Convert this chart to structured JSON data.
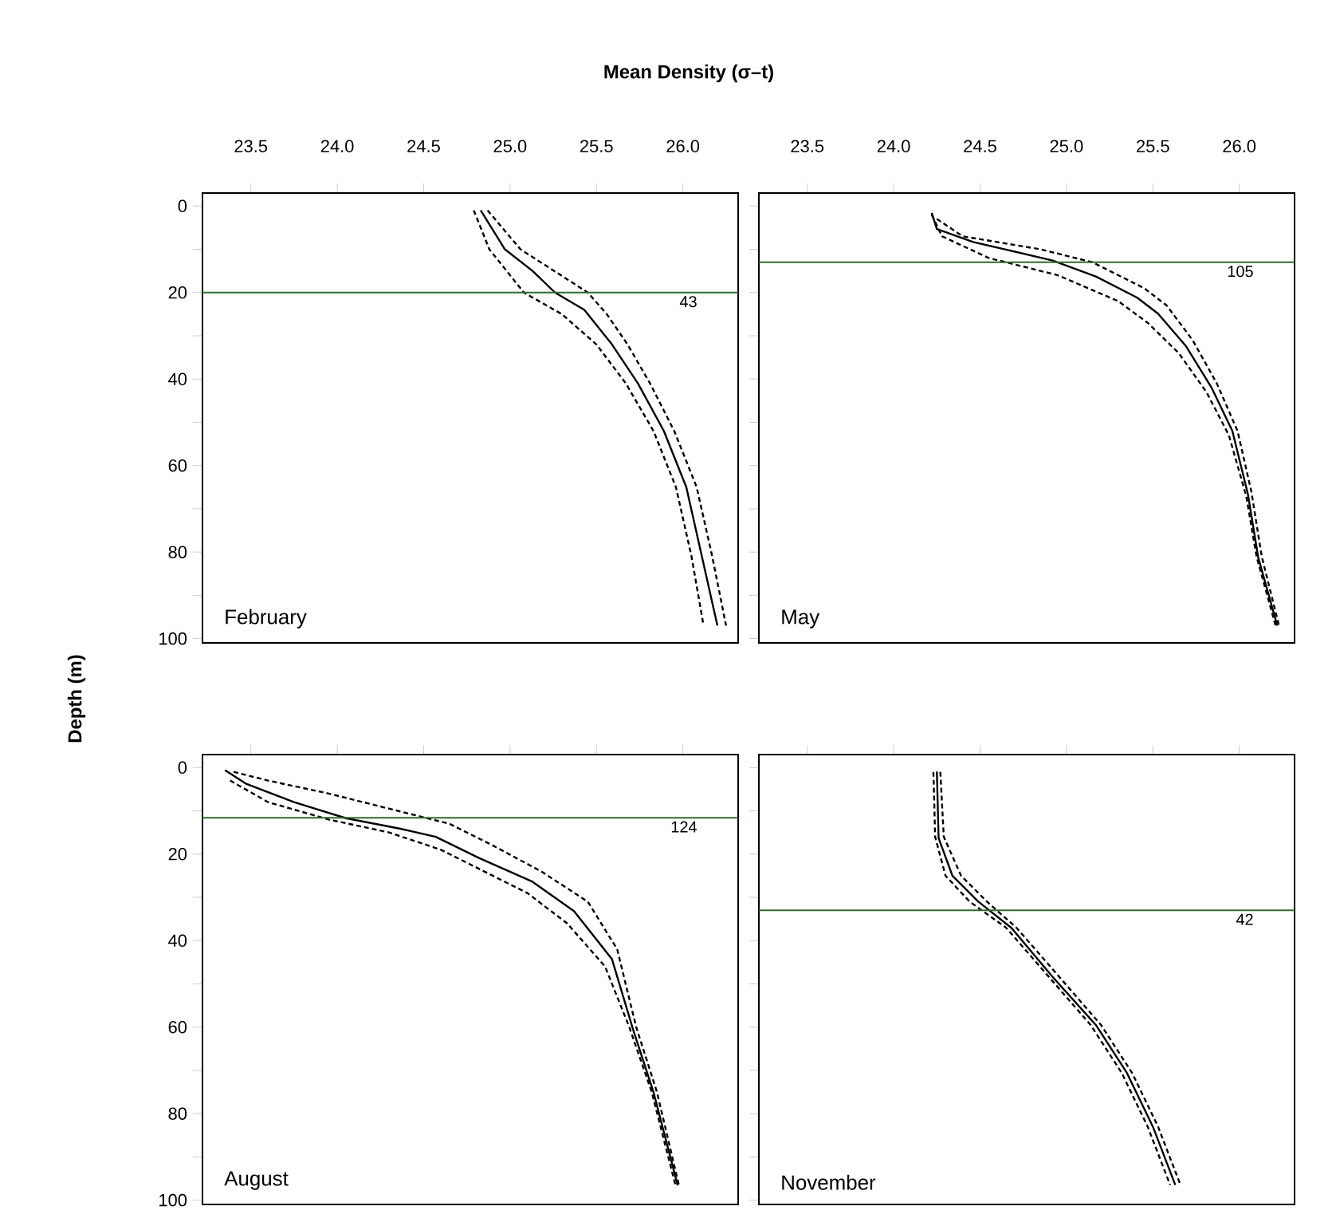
{
  "chart_data": [
    {
      "type": "line",
      "xlabel": "Mean Density  (σ–t)",
      "ylabel": "Depth (m)",
      "annotations": [
        "February",
        "43"
      ],
      "xlim": [
        23.22,
        26.32
      ],
      "ylim": [
        101,
        -3
      ],
      "xticks": [
        23.5,
        {
          "value": 24,
          "label": "24.0"
        },
        24.5,
        {
          "value": 25,
          "label": "25.0"
        },
        25.5,
        {
          "value": 26,
          "label": "26.0"
        }
      ],
      "yticks": [
        0,
        {
          "value": 10,
          "label": null
        },
        20,
        {
          "value": 30,
          "label": null
        },
        40,
        {
          "value": 50,
          "label": null
        },
        60,
        {
          "value": 70,
          "label": null
        },
        80,
        {
          "value": 90,
          "label": null
        },
        100
      ],
      "ref_lines": [
        {
          "axis": "y",
          "value": 20,
          "color": "#2e6b2e"
        }
      ],
      "series": [
        {
          "color": "#000000",
          "line_style": "solid",
          "x": [
            24.83,
            24.97,
            25.13,
            25.26,
            25.43,
            25.59,
            25.74,
            25.89,
            26.02,
            26.11,
            26.2
          ],
          "values": [
            1,
            10,
            15,
            20,
            24,
            32,
            41,
            52,
            65,
            81,
            97
          ]
        },
        {
          "color": "#000000",
          "line_style": "dashed",
          "x": [
            24.79,
            24.88,
            25.08,
            25.3,
            25.5,
            25.67,
            25.83,
            25.96,
            26.05,
            26.12
          ],
          "values": [
            1,
            10,
            20,
            25,
            32,
            41,
            52,
            65,
            81,
            97
          ]
        },
        {
          "color": "#000000",
          "line_style": "dashed",
          "x": [
            24.87,
            25.06,
            25.45,
            25.56,
            25.68,
            25.81,
            25.95,
            26.08,
            26.17,
            26.25
          ],
          "values": [
            1,
            10,
            20,
            25,
            32,
            41,
            52,
            65,
            81,
            97
          ]
        }
      ]
    },
    {
      "type": "line",
      "annotations": [
        "May",
        "105"
      ],
      "tick_labels": "x",
      "xlim": [
        23.22,
        26.32
      ],
      "ylim": [
        101,
        -3
      ],
      "xticks": [
        23.5,
        {
          "value": 24,
          "label": "24.0"
        },
        24.5,
        {
          "value": 25,
          "label": "25.0"
        },
        25.5,
        {
          "value": 26,
          "label": "26.0"
        }
      ],
      "yticks": [
        {
          "value": 0,
          "label": null
        },
        {
          "value": 10,
          "label": null
        },
        {
          "value": 20,
          "label": null
        },
        {
          "value": 30,
          "label": null
        },
        {
          "value": 40,
          "label": null
        },
        {
          "value": 50,
          "label": null
        },
        {
          "value": 60,
          "label": null
        },
        {
          "value": 70,
          "label": null
        },
        {
          "value": 80,
          "label": null
        },
        {
          "value": 90,
          "label": null
        },
        {
          "value": 100,
          "label": null
        }
      ],
      "ref_lines": [
        {
          "axis": "y",
          "value": 13,
          "color": "#2e6b2e"
        }
      ],
      "series": [
        {
          "color": "#000000",
          "line_style": "solid",
          "x": [
            24.22,
            24.25,
            24.46,
            24.92,
            25.17,
            25.41,
            25.53,
            25.69,
            25.84,
            25.96,
            26.05,
            26.11,
            26.22
          ],
          "values": [
            1.6,
            5.3,
            8.3,
            12.6,
            16.3,
            21.2,
            24.9,
            32.3,
            42,
            52,
            66.6,
            81.3,
            97
          ]
        },
        {
          "color": "#000000",
          "line_style": "dashed",
          "x": [
            24.22,
            24.28,
            24.55,
            24.95,
            25.3,
            25.47,
            25.65,
            25.81,
            25.94,
            26.04,
            26.1,
            26.21
          ],
          "values": [
            2,
            7,
            12,
            16,
            22,
            27,
            34,
            43,
            53,
            67,
            81,
            97
          ]
        },
        {
          "color": "#000000",
          "line_style": "dashed",
          "x": [
            24.25,
            24.4,
            24.85,
            25.15,
            25.45,
            25.58,
            25.73,
            25.87,
            25.99,
            26.07,
            26.13,
            26.23
          ],
          "values": [
            3,
            7,
            10,
            13,
            19,
            23,
            31,
            41,
            52,
            66,
            81,
            97
          ]
        }
      ]
    },
    {
      "type": "line",
      "annotations": [
        "August",
        "124"
      ],
      "tick_labels": "y",
      "xlim": [
        23.22,
        26.32
      ],
      "ylim": [
        101,
        -3
      ],
      "xticks": [
        {
          "value": 23.5,
          "label": null
        },
        {
          "value": 24.0,
          "label": null
        },
        {
          "value": 24.5,
          "label": null
        },
        {
          "value": 25.0,
          "label": null
        },
        {
          "value": 25.5,
          "label": null
        },
        {
          "value": 26.0,
          "label": null
        }
      ],
      "yticks": [
        0,
        {
          "value": 10,
          "label": null
        },
        20,
        {
          "value": 30,
          "label": null
        },
        40,
        {
          "value": 50,
          "label": null
        },
        60,
        {
          "value": 70,
          "label": null
        },
        80,
        {
          "value": 90,
          "label": null
        },
        100
      ],
      "ref_lines": [
        {
          "axis": "y",
          "value": 11.6,
          "color": "#2e6b2e"
        }
      ],
      "series": [
        {
          "color": "#000000",
          "line_style": "solid",
          "x": [
            23.35,
            23.47,
            23.75,
            24.05,
            24.36,
            24.57,
            24.82,
            25.13,
            25.37,
            25.59,
            25.71,
            25.83,
            25.97
          ],
          "values": [
            0.6,
            3.7,
            8,
            11.7,
            14.1,
            16,
            20.9,
            26.4,
            33.2,
            44.3,
            60.3,
            75,
            96.6
          ]
        },
        {
          "color": "#000000",
          "line_style": "dashed",
          "x": [
            23.38,
            23.6,
            23.95,
            24.3,
            24.6,
            24.85,
            25.1,
            25.33,
            25.55,
            25.69,
            25.82,
            25.96
          ],
          "values": [
            3,
            8,
            12,
            15,
            19,
            24,
            29,
            36,
            46,
            60,
            75,
            97
          ]
        },
        {
          "color": "#000000",
          "line_style": "dashed",
          "x": [
            23.4,
            23.6,
            23.95,
            24.35,
            24.65,
            24.9,
            25.18,
            25.45,
            25.62,
            25.73,
            25.85,
            25.98
          ],
          "values": [
            1,
            3,
            6,
            10,
            13,
            18,
            24,
            31,
            42,
            60,
            75,
            97
          ]
        }
      ]
    },
    {
      "type": "line",
      "annotations": [
        "November",
        "42"
      ],
      "tick_labels": false,
      "xlim": [
        23.22,
        26.32
      ],
      "ylim": [
        101,
        -3
      ],
      "xticks": [
        {
          "value": 23.5,
          "label": null
        },
        {
          "value": 24.0,
          "label": null
        },
        {
          "value": 24.5,
          "label": null
        },
        {
          "value": 25.0,
          "label": null
        },
        {
          "value": 25.5,
          "label": null
        },
        {
          "value": 26.0,
          "label": null
        }
      ],
      "yticks": [
        {
          "value": 0,
          "label": null
        },
        {
          "value": 10,
          "label": null
        },
        {
          "value": 20,
          "label": null
        },
        {
          "value": 30,
          "label": null
        },
        {
          "value": 40,
          "label": null
        },
        {
          "value": 50,
          "label": null
        },
        {
          "value": 60,
          "label": null
        },
        {
          "value": 70,
          "label": null
        },
        {
          "value": 80,
          "label": null
        },
        {
          "value": 90,
          "label": null
        },
        {
          "value": 100,
          "label": null
        }
      ],
      "ref_lines": [
        {
          "axis": "y",
          "value": 33,
          "color": "#2e6b2e"
        }
      ],
      "series": [
        {
          "color": "#000000",
          "line_style": "solid",
          "x": [
            24.25,
            24.26,
            24.34,
            24.49,
            24.68,
            24.92,
            25.17,
            25.35,
            25.5,
            25.63
          ],
          "values": [
            0.9,
            16.3,
            25,
            31,
            37,
            48.4,
            59.5,
            70.6,
            83,
            96.5
          ]
        },
        {
          "color": "#000000",
          "line_style": "dashed",
          "x": [
            24.23,
            24.24,
            24.3,
            24.44,
            24.65,
            24.89,
            25.14,
            25.32,
            25.47,
            25.6
          ],
          "values": [
            1,
            16,
            25,
            31,
            37,
            48,
            59.5,
            70.6,
            83,
            96.5
          ]
        },
        {
          "color": "#000000",
          "line_style": "dashed",
          "x": [
            24.27,
            24.29,
            24.39,
            24.54,
            24.71,
            24.95,
            25.2,
            25.38,
            25.53,
            25.66
          ],
          "values": [
            1,
            16,
            25,
            31,
            37,
            48,
            59.5,
            70.6,
            83,
            96.5
          ]
        }
      ]
    }
  ]
}
